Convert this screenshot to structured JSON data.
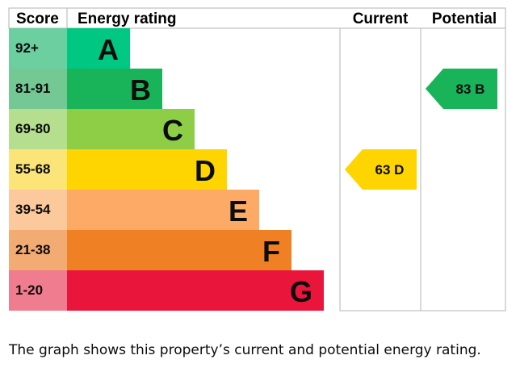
{
  "chart_data": {
    "type": "bar",
    "headers": {
      "score": "Score",
      "rating": "Energy rating",
      "current": "Current",
      "potential": "Potential"
    },
    "bands": [
      {
        "letter": "A",
        "score": "92+",
        "color": "#00c781",
        "score_color": "#6bcfa0"
      },
      {
        "letter": "B",
        "score": "81-91",
        "color": "#19b459",
        "score_color": "#73c893"
      },
      {
        "letter": "C",
        "score": "69-80",
        "color": "#8dce46",
        "score_color": "#b5df8e"
      },
      {
        "letter": "D",
        "score": "55-68",
        "color": "#ffd500",
        "score_color": "#fbe478"
      },
      {
        "letter": "E",
        "score": "39-54",
        "color": "#fcaa65",
        "score_color": "#fcc99d"
      },
      {
        "letter": "F",
        "score": "21-38",
        "color": "#ef8023",
        "score_color": "#f3ab74"
      },
      {
        "letter": "G",
        "score": "1-20",
        "color": "#e9153b",
        "score_color": "#f07d8f"
      }
    ],
    "current": {
      "value": 63,
      "band": "D",
      "label": "63  D",
      "color": "#ffd500"
    },
    "potential": {
      "value": 83,
      "band": "B",
      "label": "83  B",
      "color": "#19b459"
    }
  },
  "caption": "The graph shows this property’s current and potential energy rating."
}
